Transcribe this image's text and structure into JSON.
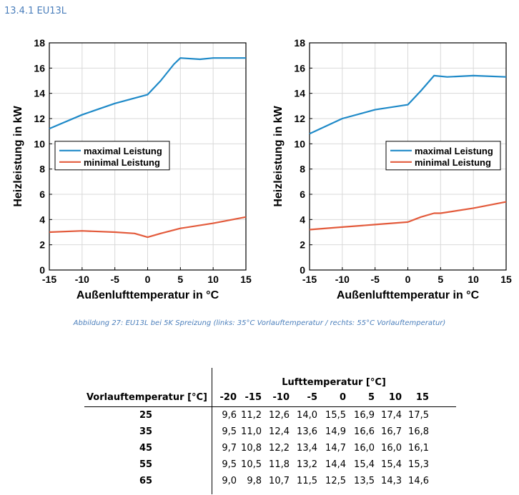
{
  "section_heading": "13.4.1  EU13L",
  "chart_data": [
    {
      "type": "line",
      "ylabel": "Heizleistung in kW",
      "xlabel": "Außenlufttemperatur in °C",
      "xlim": [
        -15,
        15
      ],
      "ylim": [
        0,
        18
      ],
      "xticks": [
        "-15",
        "-10",
        "-5",
        "0",
        "5",
        "10",
        "15"
      ],
      "yticks": [
        "0",
        "2",
        "4",
        "6",
        "8",
        "10",
        "12",
        "14",
        "16",
        "18"
      ],
      "grid": true,
      "legend_position": "middle-left",
      "series": [
        {
          "name": "maximal Leistung",
          "color": "#1f8ac8",
          "x": [
            -15,
            -10,
            -5,
            0,
            2,
            4,
            5,
            8,
            10,
            15
          ],
          "y": [
            11.2,
            12.3,
            13.2,
            13.9,
            15.0,
            16.3,
            16.8,
            16.7,
            16.8,
            16.8
          ]
        },
        {
          "name": "minimal Leistung",
          "color": "#e35b3c",
          "x": [
            -15,
            -10,
            -5,
            -2,
            0,
            2,
            5,
            10,
            15
          ],
          "y": [
            3.0,
            3.1,
            3.0,
            2.9,
            2.6,
            2.9,
            3.3,
            3.7,
            4.2
          ]
        }
      ]
    },
    {
      "type": "line",
      "ylabel": "Heizleistung in kW",
      "xlabel": "Außenlufttemperatur in °C",
      "xlim": [
        -15,
        15
      ],
      "ylim": [
        0,
        18
      ],
      "xticks": [
        "-15",
        "-10",
        "-5",
        "0",
        "5",
        "10",
        "15"
      ],
      "yticks": [
        "0",
        "2",
        "4",
        "6",
        "8",
        "10",
        "12",
        "14",
        "16",
        "18"
      ],
      "grid": true,
      "legend_position": "middle-right",
      "series": [
        {
          "name": "maximal Leistung",
          "color": "#1f8ac8",
          "x": [
            -15,
            -10,
            -5,
            0,
            2,
            4,
            6,
            10,
            15
          ],
          "y": [
            10.8,
            12.0,
            12.7,
            13.1,
            14.2,
            15.4,
            15.3,
            15.4,
            15.3
          ]
        },
        {
          "name": "minimal Leistung",
          "color": "#e35b3c",
          "x": [
            -15,
            -10,
            -5,
            0,
            2,
            4,
            5,
            10,
            15
          ],
          "y": [
            3.2,
            3.4,
            3.6,
            3.8,
            4.2,
            4.5,
            4.5,
            4.9,
            5.4
          ]
        }
      ]
    }
  ],
  "caption": "Abbildung 27: EU13L bei 5K Spreizung (links: 35°C Vorlauftemperatur / rechts: 55°C Vorlauftemperatur)",
  "table": {
    "super_header": "Lufttemperatur [°C]",
    "row_header": "Vorlauftemperatur [°C]",
    "columns": [
      "-20",
      "-15",
      "-10",
      "-5",
      "0",
      "5",
      "10",
      "15"
    ],
    "rows": [
      {
        "label": "25",
        "values": [
          "9,6",
          "11,2",
          "12,6",
          "14,0",
          "15,5",
          "16,9",
          "17,4",
          "17,5"
        ]
      },
      {
        "label": "35",
        "values": [
          "9,5",
          "11,0",
          "12,4",
          "13,6",
          "14,9",
          "16,6",
          "16,7",
          "16,8"
        ]
      },
      {
        "label": "45",
        "values": [
          "9,7",
          "10,8",
          "12,2",
          "13,4",
          "14,7",
          "16,0",
          "16,0",
          "16,1"
        ]
      },
      {
        "label": "55",
        "values": [
          "9,5",
          "10,5",
          "11,8",
          "13,2",
          "14,4",
          "15,4",
          "15,4",
          "15,3"
        ]
      },
      {
        "label": "65",
        "values": [
          "9,0",
          "9,8",
          "10,7",
          "11,5",
          "12,5",
          "13,5",
          "14,3",
          "14,6"
        ]
      }
    ]
  }
}
